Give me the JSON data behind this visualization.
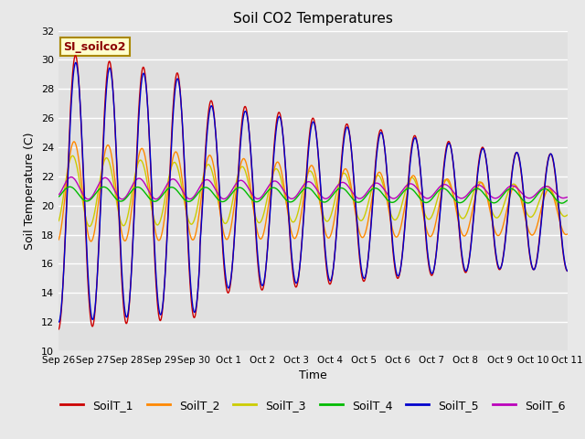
{
  "title": "Soil CO2 Temperatures",
  "xlabel": "Time",
  "ylabel": "Soil Temperature (C)",
  "ylim": [
    10,
    32
  ],
  "yticks": [
    10,
    12,
    14,
    16,
    18,
    20,
    22,
    24,
    26,
    28,
    30,
    32
  ],
  "series_colors": {
    "SoilT_1": "#cc0000",
    "SoilT_2": "#ff8800",
    "SoilT_3": "#cccc00",
    "SoilT_4": "#00bb00",
    "SoilT_5": "#0000cc",
    "SoilT_6": "#bb00bb"
  },
  "legend_label": "SI_soilco2",
  "legend_bg": "#ffffcc",
  "legend_border": "#aa8800",
  "bg_color": "#e8e8e8",
  "tick_labels": [
    "Sep 26",
    "Sep 27",
    "Sep 28",
    "Sep 29",
    "Sep 30",
    "Oct 1",
    "Oct 2",
    "Oct 3",
    "Oct 4",
    "Oct 5",
    "Oct 6",
    "Oct 7",
    "Oct 8",
    "Oct 9",
    "Oct 10",
    "Oct 11"
  ]
}
